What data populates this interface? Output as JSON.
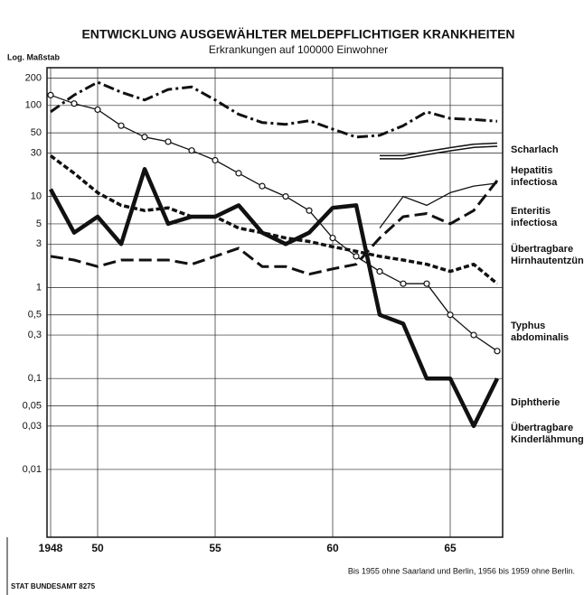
{
  "chart_data": {
    "type": "line",
    "title": "ENTWICKLUNG AUSGEWÄHLTER MELDEPFLICHTIGER KRANKHEITEN",
    "subtitle": "Erkrankungen auf 100000 Einwohner",
    "y_label": "Log. Maßstab",
    "note": "Bis 1955 ohne Saarland und Berlin, 1956 bis 1959 ohne Berlin.",
    "source": "STAT BUNDESAMT 8275",
    "log_y": true,
    "grid": true,
    "x": [
      1948,
      1949,
      1950,
      1951,
      1952,
      1953,
      1954,
      1955,
      1956,
      1957,
      1958,
      1959,
      1960,
      1961,
      1962,
      1963,
      1964,
      1965,
      1966,
      1967
    ],
    "xlim": [
      1948,
      1967
    ],
    "xticks": [
      1948,
      {
        "value": 1950,
        "label": "50"
      },
      {
        "value": 1955,
        "label": "55"
      },
      {
        "value": 1960,
        "label": "60"
      },
      {
        "value": 1965,
        "label": "65"
      }
    ],
    "ylim": [
      0.0018,
      260
    ],
    "yticks": [
      200,
      100,
      50,
      30,
      10,
      5,
      3,
      1,
      {
        "value": 0.5,
        "label": "0,5"
      },
      {
        "value": 0.3,
        "label": "0,3"
      },
      {
        "value": 0.1,
        "label": "0,1"
      },
      {
        "value": 0.05,
        "label": "0,05"
      },
      {
        "value": 0.03,
        "label": "0,03"
      },
      {
        "value": 0.01,
        "label": "0,01"
      }
    ],
    "series": [
      {
        "name": "Scharlach",
        "color": "#111",
        "style": "dashdot",
        "values": [
          85,
          130,
          180,
          140,
          115,
          150,
          160,
          115,
          80,
          65,
          62,
          68,
          55,
          45,
          47,
          60,
          85,
          72,
          70,
          67
        ]
      },
      {
        "name": "Hepatitis infectiosa",
        "color": "#111",
        "style": "double",
        "values": [
          null,
          null,
          null,
          null,
          null,
          null,
          null,
          null,
          null,
          null,
          null,
          null,
          null,
          null,
          27,
          27,
          30,
          33,
          36,
          37
        ]
      },
      {
        "name": "Enteritis infectiosa",
        "color": "#111",
        "style": "thin",
        "values": [
          null,
          null,
          null,
          null,
          null,
          null,
          null,
          null,
          null,
          null,
          null,
          null,
          null,
          null,
          4.5,
          10,
          8,
          11,
          13,
          14
        ]
      },
      {
        "name": "Übertragbare Hirnhautentzündung",
        "color": "#111",
        "style": "longdash",
        "values": [
          2.2,
          2,
          1.7,
          2,
          2,
          2,
          1.8,
          2.2,
          2.7,
          1.7,
          1.7,
          1.4,
          1.6,
          1.8,
          3.5,
          6,
          6.5,
          5,
          7,
          15
        ]
      },
      {
        "name": "Typhus abdominalis",
        "color": "#111",
        "style": "dashed",
        "values": [
          28,
          18,
          11,
          8,
          7,
          7.5,
          6,
          6,
          4.5,
          4,
          3.5,
          3.2,
          2.8,
          2.5,
          2.2,
          2,
          1.8,
          1.5,
          1.8,
          1.1
        ]
      },
      {
        "name": "Diphtherie",
        "color": "#111",
        "style": "circles",
        "values": [
          130,
          105,
          90,
          60,
          45,
          40,
          32,
          25,
          18,
          13,
          10,
          7,
          3.5,
          2.2,
          1.5,
          1.1,
          1.1,
          0.5,
          0.3,
          0.2
        ]
      },
      {
        "name": "Übertragbare Kinderlähmung",
        "color": "#111",
        "style": "thick",
        "values": [
          12,
          4,
          6,
          3,
          20,
          5,
          6,
          6,
          8,
          4,
          3,
          4,
          7.5,
          8,
          0.5,
          0.4,
          0.1,
          0.1,
          0.03,
          0.1
        ]
      }
    ]
  }
}
